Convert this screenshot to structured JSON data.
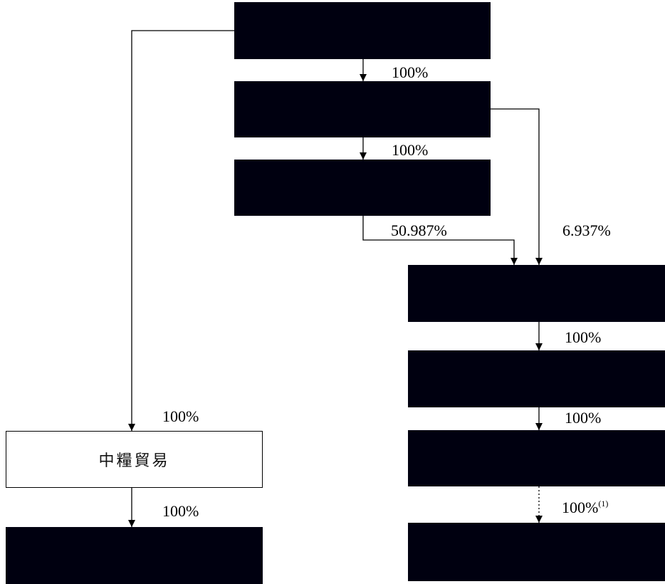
{
  "diagram": {
    "labels": {
      "pct_top_1": "100%",
      "pct_top_2": "100%",
      "pct_a": "50.987%",
      "pct_b": "6.937%",
      "pct_right_1": "100%",
      "pct_right_2": "100%",
      "pct_right_3": "100%",
      "pct_right_3_note": "(1)",
      "pct_left_1": "100%",
      "pct_left_2": "100%"
    },
    "nodes": {
      "trading_company": "中糧貿易"
    },
    "styles": {
      "redacted_fill": "#000010",
      "line_color": "#000000",
      "dotted_link": "indirect 100% holding marked with note (1)"
    }
  }
}
